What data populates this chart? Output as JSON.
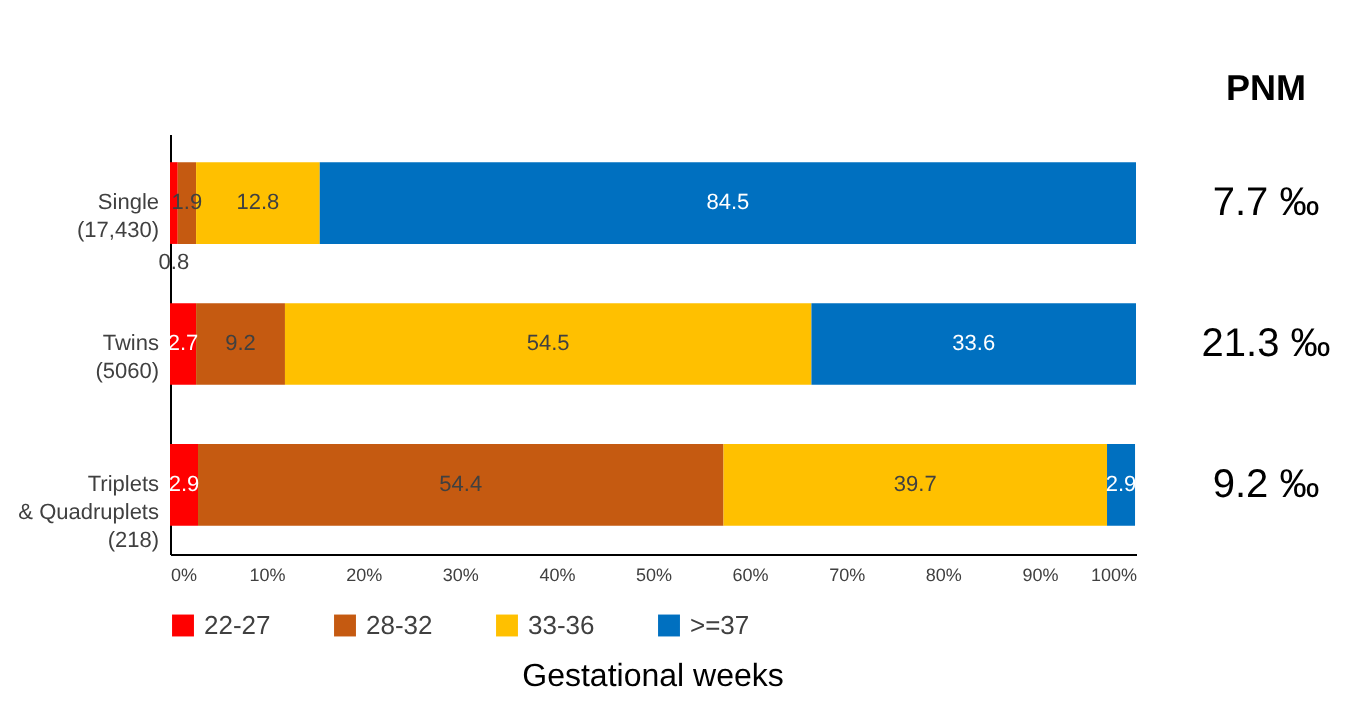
{
  "chart_data": {
    "type": "bar",
    "orientation": "horizontal",
    "stacked": true,
    "xlabel": "Gestational weeks",
    "categories": [
      "Single\n(17,430)",
      "Twins\n(5060)",
      "Triplets\n& Quadruplets\n(218)"
    ],
    "series": [
      {
        "name": "22-27",
        "color": "#ff0000",
        "values": [
          0.8,
          2.7,
          2.9
        ]
      },
      {
        "name": "28-32",
        "color": "#c55a11",
        "values": [
          1.9,
          9.2,
          54.4
        ]
      },
      {
        "name": "33-36",
        "color": "#ffc000",
        "values": [
          12.8,
          54.5,
          39.7
        ]
      },
      {
        "name": ">=37",
        "color": "#0070c0",
        "values": [
          84.5,
          33.6,
          2.9
        ]
      }
    ],
    "xlim": [
      0,
      100
    ],
    "xticks": [
      {
        "value": 0,
        "label": "0%"
      },
      {
        "value": 10,
        "label": "10%"
      },
      {
        "value": 20,
        "label": "20%"
      },
      {
        "value": 30,
        "label": "30%"
      },
      {
        "value": 40,
        "label": "40%"
      },
      {
        "value": 50,
        "label": "50%"
      },
      {
        "value": 60,
        "label": "60%"
      },
      {
        "value": 70,
        "label": "70%"
      },
      {
        "value": 80,
        "label": "80%"
      },
      {
        "value": 90,
        "label": "90%"
      },
      {
        "value": 100,
        "label": "100%"
      }
    ],
    "data_labels": true,
    "legend": "bottom",
    "grid": false,
    "annotations": [
      "PNM",
      "7.7 ‰",
      "21.3 ‰",
      "9.2 ‰"
    ]
  }
}
